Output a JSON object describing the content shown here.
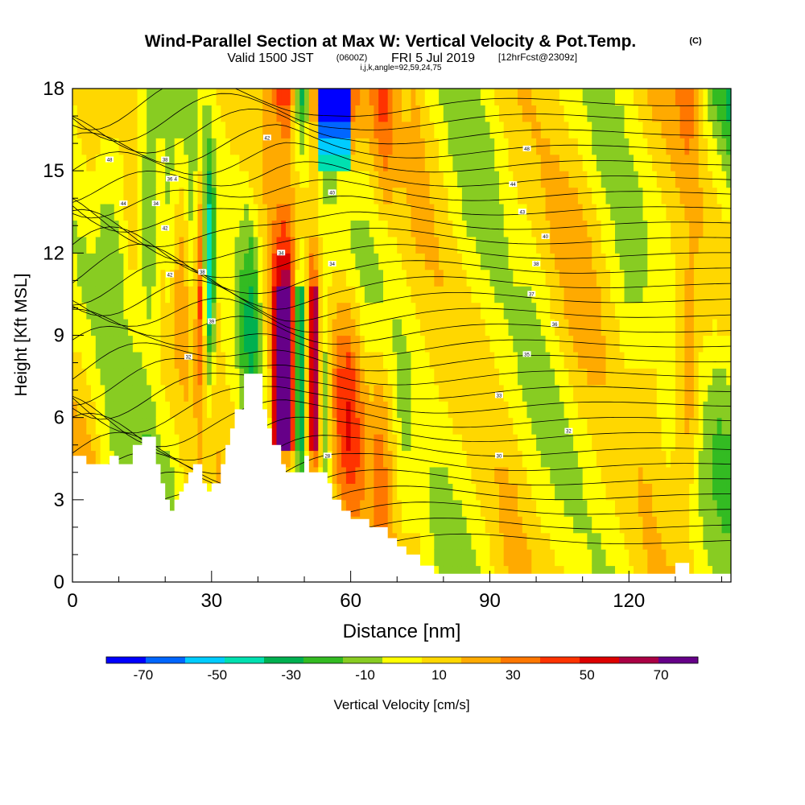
{
  "header": {
    "title": "Wind-Parallel Section at Max W: Vertical Velocity & Pot.Temp.",
    "copyright": "(C)",
    "valid_prefix": "Valid 1500 JST",
    "valid_utc": "(0600Z)",
    "valid_date": "FRI 5 Jul 2019",
    "forecast": "[12hrFcst@2309z]",
    "indices": "i,j,k,angle=92,59,24,75"
  },
  "chart_data": {
    "type": "heatmap",
    "xlabel": "Distance [nm]",
    "ylabel": "Height [Kft MSL]",
    "xlim": [
      0,
      142
    ],
    "ylim": [
      0,
      18
    ],
    "x_ticks": [
      "0",
      "30",
      "60",
      "90",
      "120"
    ],
    "y_ticks": [
      "0",
      "3",
      "6",
      "9",
      "12",
      "15",
      "18"
    ],
    "colorbar": {
      "label": "Vertical Velocity [cm/s]",
      "tick_labels": [
        "-70",
        "-50",
        "-30",
        "-10",
        "10",
        "30",
        "50",
        "70"
      ],
      "bins": [
        -80,
        -70,
        -60,
        -50,
        -40,
        -30,
        -20,
        -10,
        0,
        10,
        20,
        30,
        40,
        50,
        60,
        70,
        80
      ],
      "colors": [
        "#0000ff",
        "#0066ff",
        "#00ccff",
        "#00e0b0",
        "#00b050",
        "#33bb22",
        "#88cc22",
        "#ffff00",
        "#ffd700",
        "#ffaa00",
        "#ff7700",
        "#ff3300",
        "#dd0000",
        "#aa0044",
        "#660088"
      ]
    },
    "terrain_kft": [
      [
        0,
        4.6
      ],
      [
        3,
        4.6
      ],
      [
        3,
        4.3
      ],
      [
        8,
        4.3
      ],
      [
        8,
        4.6
      ],
      [
        10,
        4.6
      ],
      [
        10,
        4.3
      ],
      [
        13,
        4.3
      ],
      [
        13,
        5.0
      ],
      [
        15,
        5.0
      ],
      [
        15,
        5.3
      ],
      [
        18,
        5.3
      ],
      [
        18,
        4.3
      ],
      [
        19,
        4.3
      ],
      [
        19,
        3.6
      ],
      [
        20,
        3.6
      ],
      [
        20,
        3.0
      ],
      [
        21,
        3.0
      ],
      [
        21,
        2.6
      ],
      [
        22,
        2.6
      ],
      [
        22,
        3.0
      ],
      [
        23,
        3.0
      ],
      [
        23,
        3.3
      ],
      [
        24,
        3.3
      ],
      [
        24,
        3.6
      ],
      [
        25,
        3.6
      ],
      [
        25,
        4.0
      ],
      [
        26,
        4.0
      ],
      [
        26,
        4.3
      ],
      [
        28,
        4.3
      ],
      [
        28,
        3.6
      ],
      [
        29,
        3.6
      ],
      [
        29,
        3.3
      ],
      [
        30,
        3.3
      ],
      [
        30,
        3.6
      ],
      [
        32,
        3.6
      ],
      [
        32,
        4.3
      ],
      [
        33,
        4.3
      ],
      [
        33,
        5.0
      ],
      [
        34,
        5.0
      ],
      [
        34,
        5.6
      ],
      [
        35,
        5.6
      ],
      [
        35,
        6.3
      ],
      [
        37,
        6.3
      ],
      [
        37,
        7.6
      ],
      [
        41,
        7.6
      ],
      [
        41,
        6.3
      ],
      [
        42,
        6.3
      ],
      [
        42,
        5.6
      ],
      [
        43,
        5.6
      ],
      [
        43,
        5.0
      ],
      [
        45,
        5.0
      ],
      [
        45,
        4.3
      ],
      [
        46,
        4.3
      ],
      [
        46,
        4.0
      ],
      [
        50,
        4.0
      ],
      [
        50,
        4.6
      ],
      [
        51,
        4.6
      ],
      [
        51,
        4.0
      ],
      [
        55,
        4.0
      ],
      [
        55,
        3.6
      ],
      [
        56,
        3.6
      ],
      [
        56,
        3.0
      ],
      [
        58,
        3.0
      ],
      [
        58,
        2.6
      ],
      [
        60,
        2.6
      ],
      [
        60,
        2.3
      ],
      [
        64,
        2.3
      ],
      [
        64,
        2.0
      ],
      [
        68,
        2.0
      ],
      [
        68,
        1.6
      ],
      [
        70,
        1.6
      ],
      [
        70,
        1.3
      ],
      [
        72,
        1.3
      ],
      [
        72,
        1.0
      ],
      [
        75,
        1.0
      ],
      [
        75,
        0.6
      ],
      [
        78,
        0.6
      ],
      [
        78,
        0.3
      ],
      [
        130,
        0.3
      ],
      [
        130,
        0.7
      ],
      [
        133,
        0.7
      ],
      [
        133,
        0.3
      ],
      [
        142,
        0.3
      ]
    ],
    "wv_profile": [
      [
        0,
        5
      ],
      [
        4,
        8
      ],
      [
        7,
        -8
      ],
      [
        10,
        -12
      ],
      [
        13,
        0
      ],
      [
        15,
        -20
      ],
      [
        17,
        -30
      ],
      [
        19,
        -10
      ],
      [
        21,
        -15
      ],
      [
        23,
        10
      ],
      [
        25,
        5
      ],
      [
        26,
        -12
      ],
      [
        27,
        25
      ],
      [
        28,
        40
      ],
      [
        29,
        -45
      ],
      [
        30,
        -35
      ],
      [
        31,
        10
      ],
      [
        33,
        5
      ],
      [
        35,
        5
      ],
      [
        37,
        -15
      ],
      [
        39,
        -25
      ],
      [
        41,
        5
      ],
      [
        43,
        30
      ],
      [
        44,
        55
      ],
      [
        45,
        70
      ],
      [
        46,
        75
      ],
      [
        47,
        60
      ],
      [
        48,
        0
      ],
      [
        49,
        -35
      ],
      [
        50,
        -30
      ],
      [
        51,
        30
      ],
      [
        52,
        55
      ],
      [
        53,
        35
      ],
      [
        54,
        -30
      ],
      [
        55,
        -15
      ],
      [
        57,
        20
      ],
      [
        60,
        35
      ],
      [
        62,
        20
      ],
      [
        64,
        10
      ],
      [
        66,
        25
      ],
      [
        68,
        20
      ],
      [
        70,
        5
      ],
      [
        72,
        0
      ],
      [
        74,
        10
      ],
      [
        76,
        5
      ],
      [
        80,
        0
      ],
      [
        85,
        -5
      ],
      [
        90,
        -2
      ],
      [
        95,
        5
      ],
      [
        100,
        0
      ],
      [
        105,
        5
      ],
      [
        110,
        10
      ],
      [
        115,
        0
      ],
      [
        120,
        -5
      ],
      [
        125,
        10
      ],
      [
        128,
        5
      ],
      [
        130,
        15
      ],
      [
        133,
        30
      ],
      [
        136,
        0
      ],
      [
        139,
        -15
      ],
      [
        142,
        -20
      ]
    ],
    "theta_labels": [
      "48",
      "44",
      "44",
      "42",
      "42",
      "39",
      "38",
      "38",
      "36",
      "34",
      "34",
      "32",
      "42",
      "40",
      "34",
      "48",
      "44",
      "43",
      "40",
      "38",
      "37",
      "36",
      "35",
      "33",
      "32",
      "30",
      "28"
    ]
  }
}
